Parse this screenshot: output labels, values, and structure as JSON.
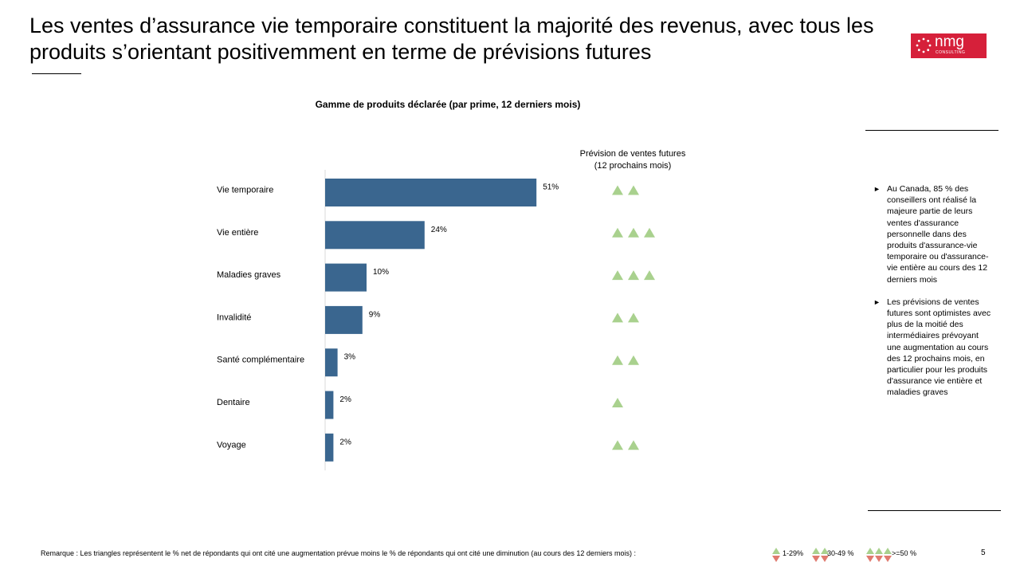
{
  "title": "Les ventes d’assurance vie temporaire constituent la majorité des revenus, avec tous les produits s’orientant positivemment en terme de prévisions futures",
  "logo": {
    "name": "nmg",
    "sub": "CONSULTING"
  },
  "chart_title": "Gamme de produits déclarée (par prime, 12 derniers mois)",
  "forecast_header": {
    "line1": "Prévision de ventes futures",
    "line2": "(12 prochains mois)"
  },
  "colors": {
    "bar": "#3a668f",
    "up": "#a9d18e",
    "down": "#e07a6f",
    "accent": "#d6203a"
  },
  "chart_data": {
    "type": "bar",
    "orientation": "horizontal",
    "title": "Gamme de produits déclarée (par prime, 12 derniers mois)",
    "categories": [
      "Vie temporaire",
      "Vie entière",
      "Maladies graves",
      "Invalidité",
      "Santé complémentaire",
      "Dentaire",
      "Voyage"
    ],
    "values": [
      51,
      24,
      10,
      9,
      3,
      2,
      2
    ],
    "value_labels": [
      "51%",
      "24%",
      "10%",
      "9%",
      "3%",
      "2%",
      "2%"
    ],
    "forecast_triangles": [
      2,
      3,
      3,
      2,
      2,
      1,
      2
    ],
    "xlim": [
      0,
      100
    ],
    "unit": "%"
  },
  "notes": [
    {
      "bullet": "►",
      "text": "Au Canada, 85 % des conseillers ont réalisé la majeure partie de leurs ventes d'assurance personnelle dans des produits d'assurance-vie temporaire ou d'assurance-vie entière au cours des 12 derniers mois"
    },
    {
      "bullet": "►",
      "text": "Les prévisions de ventes futures sont optimistes avec plus de la moitié des intermédiaires prévoyant une augmentation au cours des 12 prochains mois, en particulier pour les produits d'assurance vie entière et maladies graves"
    }
  ],
  "footer_note": "Remarque : Les triangles représentent le % net de répondants qui ont cité une augmentation prévue moins le % de répondants qui ont cité une diminution (au cours des 12 derniers mois) :",
  "legend": [
    {
      "label": "1-29%",
      "count": 1
    },
    {
      "label": "30-49 %",
      "count": 2
    },
    {
      "label": ">=50 %",
      "count": 3
    }
  ],
  "page_number": "5"
}
